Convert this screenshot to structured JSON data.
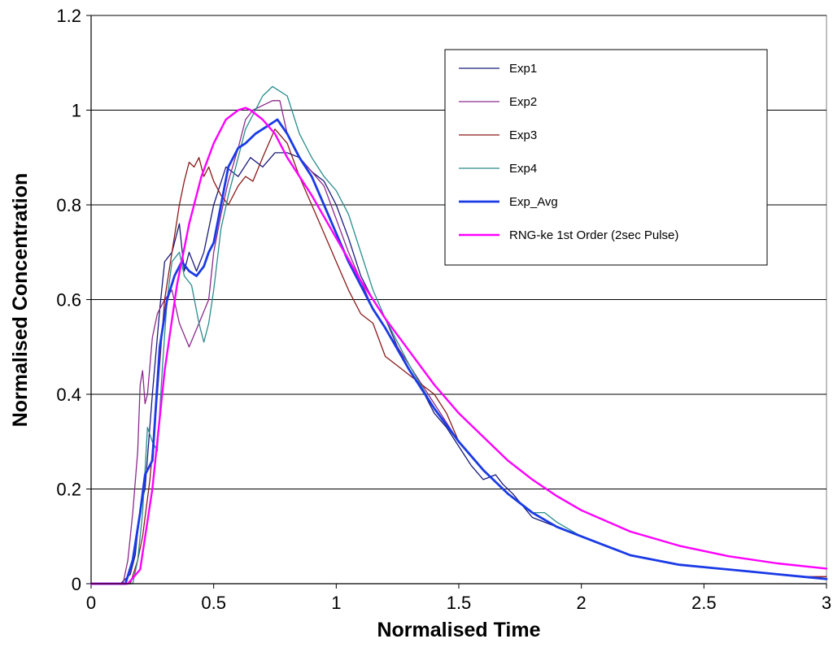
{
  "chart_data": {
    "type": "line",
    "title": "",
    "xlabel": "Normalised Time",
    "ylabel": "Normalised Concentration",
    "xlim": [
      0,
      3
    ],
    "ylim": [
      0,
      1.2
    ],
    "x_ticks": [
      0,
      0.5,
      1,
      1.5,
      2,
      2.5,
      3
    ],
    "x_tick_labels": [
      "0",
      "0.5",
      "1",
      "1.5",
      "2",
      "2.5",
      "3"
    ],
    "y_ticks": [
      0,
      0.2,
      0.4,
      0.6,
      0.8,
      1,
      1.2
    ],
    "y_tick_labels": [
      "0",
      "0.2",
      "0.4",
      "0.6",
      "0.8",
      "1",
      "1.2"
    ],
    "grid": "horizontal",
    "legend_position": "top-right",
    "series": [
      {
        "name": "Exp1",
        "color": "#1a1a7a",
        "x": [
          0,
          0.12,
          0.16,
          0.18,
          0.2,
          0.22,
          0.25,
          0.28,
          0.3,
          0.33,
          0.36,
          0.38,
          0.4,
          0.43,
          0.46,
          0.5,
          0.55,
          0.6,
          0.65,
          0.7,
          0.75,
          0.8,
          0.85,
          0.9,
          0.95,
          1.0,
          1.05,
          1.1,
          1.15,
          1.2,
          1.25,
          1.3,
          1.35,
          1.4,
          1.45,
          1.5,
          1.55,
          1.6,
          1.65,
          1.68,
          1.72,
          1.8,
          1.9,
          2.0,
          2.1,
          2.2,
          2.3,
          2.4,
          2.5,
          2.6,
          2.7,
          2.8,
          2.9,
          3.0
        ],
        "y": [
          0,
          0,
          0.02,
          0.06,
          0.16,
          0.2,
          0.4,
          0.58,
          0.68,
          0.7,
          0.76,
          0.66,
          0.7,
          0.66,
          0.7,
          0.8,
          0.88,
          0.86,
          0.9,
          0.88,
          0.91,
          0.91,
          0.9,
          0.87,
          0.85,
          0.8,
          0.73,
          0.65,
          0.6,
          0.56,
          0.5,
          0.45,
          0.41,
          0.36,
          0.33,
          0.29,
          0.25,
          0.22,
          0.23,
          0.21,
          0.19,
          0.14,
          0.12,
          0.1,
          0.08,
          0.06,
          0.05,
          0.04,
          0.035,
          0.03,
          0.025,
          0.02,
          0.015,
          0.01
        ]
      },
      {
        "name": "Exp2",
        "color": "#8b2a8b",
        "x": [
          0,
          0.13,
          0.15,
          0.17,
          0.19,
          0.2,
          0.21,
          0.22,
          0.23,
          0.25,
          0.27,
          0.3,
          0.33,
          0.36,
          0.4,
          0.44,
          0.48,
          0.5,
          0.53,
          0.56,
          0.6,
          0.63,
          0.66,
          0.7,
          0.74,
          0.77,
          0.8,
          0.85,
          0.9,
          0.95,
          1.0,
          1.05,
          1.1,
          1.15,
          1.2,
          1.3,
          1.4,
          1.5,
          1.6,
          1.7,
          1.8,
          1.9,
          2.0,
          2.1,
          2.2,
          2.3,
          2.4,
          2.5,
          2.6,
          2.7,
          2.8,
          2.9,
          3.0
        ],
        "y": [
          0,
          0,
          0.05,
          0.15,
          0.28,
          0.42,
          0.45,
          0.38,
          0.4,
          0.52,
          0.57,
          0.6,
          0.62,
          0.55,
          0.5,
          0.55,
          0.6,
          0.7,
          0.78,
          0.85,
          0.92,
          0.98,
          1.0,
          1.01,
          1.02,
          1.02,
          0.95,
          0.9,
          0.87,
          0.84,
          0.77,
          0.7,
          0.64,
          0.58,
          0.54,
          0.46,
          0.38,
          0.3,
          0.24,
          0.19,
          0.15,
          0.12,
          0.1,
          0.08,
          0.06,
          0.05,
          0.04,
          0.035,
          0.03,
          0.025,
          0.02,
          0.015,
          0.01
        ]
      },
      {
        "name": "Exp3",
        "color": "#8b1a1a",
        "x": [
          0,
          0.16,
          0.19,
          0.21,
          0.24,
          0.27,
          0.3,
          0.33,
          0.36,
          0.38,
          0.4,
          0.42,
          0.44,
          0.46,
          0.48,
          0.5,
          0.53,
          0.56,
          0.6,
          0.63,
          0.66,
          0.7,
          0.75,
          0.8,
          0.85,
          0.9,
          0.95,
          1.0,
          1.05,
          1.1,
          1.15,
          1.2,
          1.25,
          1.3,
          1.35,
          1.4,
          1.45,
          1.5,
          1.6,
          1.7,
          1.8,
          1.9,
          2.0,
          2.1,
          2.2,
          2.3,
          2.4,
          2.5,
          2.6,
          2.7,
          2.8,
          2.9,
          3.0
        ],
        "y": [
          0,
          0,
          0.05,
          0.1,
          0.22,
          0.4,
          0.6,
          0.7,
          0.8,
          0.85,
          0.89,
          0.88,
          0.9,
          0.86,
          0.88,
          0.85,
          0.82,
          0.8,
          0.84,
          0.86,
          0.85,
          0.9,
          0.96,
          0.93,
          0.86,
          0.8,
          0.74,
          0.68,
          0.62,
          0.57,
          0.55,
          0.48,
          0.46,
          0.44,
          0.42,
          0.4,
          0.36,
          0.3,
          0.24,
          0.19,
          0.15,
          0.12,
          0.1,
          0.08,
          0.06,
          0.05,
          0.04,
          0.035,
          0.03,
          0.025,
          0.02,
          0.015,
          0.015
        ]
      },
      {
        "name": "Exp4",
        "color": "#2a8b8b",
        "x": [
          0,
          0.17,
          0.19,
          0.21,
          0.23,
          0.25,
          0.27,
          0.29,
          0.31,
          0.33,
          0.36,
          0.38,
          0.41,
          0.44,
          0.46,
          0.48,
          0.5,
          0.53,
          0.56,
          0.6,
          0.63,
          0.67,
          0.7,
          0.74,
          0.77,
          0.8,
          0.85,
          0.9,
          0.95,
          1.0,
          1.05,
          1.1,
          1.15,
          1.2,
          1.3,
          1.4,
          1.5,
          1.6,
          1.7,
          1.8,
          1.85,
          1.9,
          2.0,
          2.1,
          2.2,
          2.3,
          2.4,
          2.5,
          2.6,
          2.7,
          2.8,
          2.9,
          3.0
        ],
        "y": [
          0,
          0,
          0.05,
          0.15,
          0.33,
          0.3,
          0.28,
          0.45,
          0.6,
          0.68,
          0.7,
          0.65,
          0.63,
          0.55,
          0.51,
          0.55,
          0.62,
          0.75,
          0.82,
          0.9,
          0.96,
          1.0,
          1.03,
          1.05,
          1.04,
          1.03,
          0.95,
          0.9,
          0.86,
          0.83,
          0.78,
          0.7,
          0.62,
          0.56,
          0.46,
          0.37,
          0.3,
          0.24,
          0.19,
          0.15,
          0.15,
          0.13,
          0.1,
          0.08,
          0.06,
          0.05,
          0.04,
          0.035,
          0.03,
          0.025,
          0.02,
          0.015,
          0.01
        ]
      },
      {
        "name": "Exp_Avg",
        "color": "#1a3ae6",
        "x": [
          0,
          0.14,
          0.17,
          0.2,
          0.22,
          0.25,
          0.28,
          0.31,
          0.34,
          0.37,
          0.4,
          0.43,
          0.46,
          0.48,
          0.5,
          0.53,
          0.56,
          0.6,
          0.63,
          0.67,
          0.7,
          0.73,
          0.76,
          0.8,
          0.85,
          0.9,
          0.95,
          1.0,
          1.05,
          1.1,
          1.15,
          1.2,
          1.3,
          1.4,
          1.5,
          1.6,
          1.7,
          1.8,
          1.9,
          2.0,
          2.1,
          2.2,
          2.3,
          2.4,
          2.5,
          2.6,
          2.7,
          2.8,
          2.9,
          3.0
        ],
        "y": [
          0,
          0,
          0.05,
          0.15,
          0.23,
          0.26,
          0.5,
          0.6,
          0.65,
          0.68,
          0.66,
          0.65,
          0.67,
          0.7,
          0.72,
          0.8,
          0.88,
          0.92,
          0.93,
          0.95,
          0.96,
          0.97,
          0.98,
          0.95,
          0.9,
          0.86,
          0.8,
          0.74,
          0.68,
          0.63,
          0.58,
          0.54,
          0.45,
          0.37,
          0.3,
          0.24,
          0.19,
          0.15,
          0.12,
          0.1,
          0.08,
          0.06,
          0.05,
          0.04,
          0.035,
          0.03,
          0.025,
          0.02,
          0.015,
          0.01
        ]
      },
      {
        "name": "RNG-ke 1st Order (2sec Pulse)",
        "color": "#ff00ff",
        "x": [
          0,
          0.15,
          0.2,
          0.25,
          0.3,
          0.35,
          0.4,
          0.45,
          0.5,
          0.55,
          0.6,
          0.63,
          0.65,
          0.7,
          0.75,
          0.8,
          0.9,
          1.0,
          1.1,
          1.2,
          1.3,
          1.4,
          1.5,
          1.6,
          1.7,
          1.8,
          1.9,
          2.0,
          2.2,
          2.4,
          2.6,
          2.8,
          3.0
        ],
        "y": [
          0,
          0,
          0.03,
          0.2,
          0.45,
          0.63,
          0.76,
          0.86,
          0.93,
          0.98,
          1.0,
          1.005,
          1.0,
          0.98,
          0.95,
          0.9,
          0.82,
          0.73,
          0.64,
          0.56,
          0.49,
          0.42,
          0.36,
          0.31,
          0.26,
          0.22,
          0.185,
          0.155,
          0.11,
          0.08,
          0.058,
          0.043,
          0.032
        ]
      }
    ]
  }
}
